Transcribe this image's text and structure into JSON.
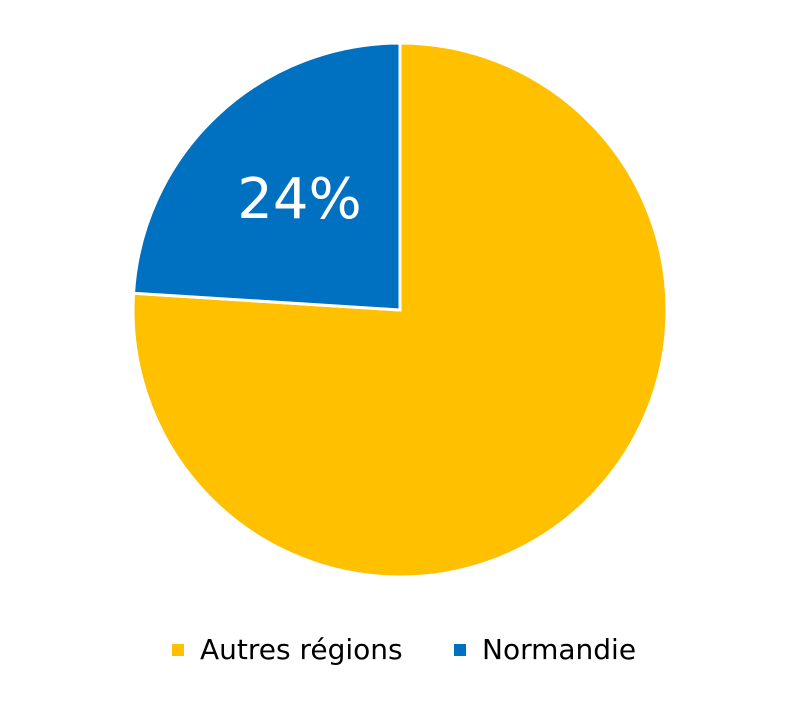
{
  "chart_data": {
    "type": "pie",
    "categories": [
      "Autres régions",
      "Normandie"
    ],
    "values": [
      76,
      24
    ],
    "value_labels": [
      null,
      "24%"
    ],
    "colors": [
      "#FFC000",
      "#0070C0"
    ],
    "legend": "bottom"
  }
}
